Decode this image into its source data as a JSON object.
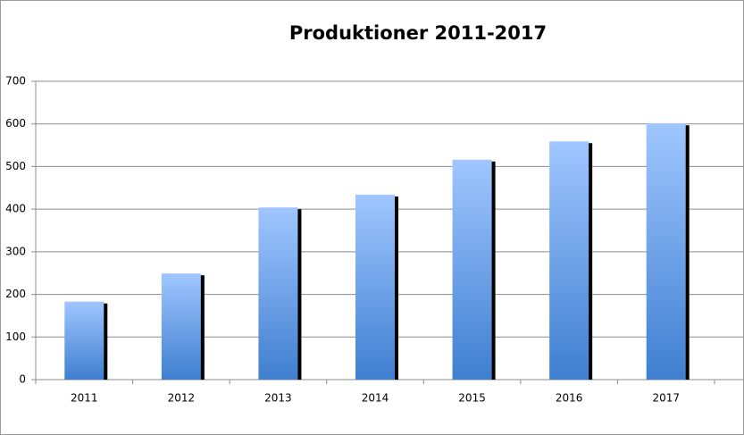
{
  "chart_data": {
    "type": "bar",
    "title": "Produktioner 2011-2017",
    "categories": [
      "2011",
      "2012",
      "2013",
      "2014",
      "2015",
      "2016",
      "2017"
    ],
    "values": [
      183,
      249,
      404,
      434,
      516,
      559,
      601
    ],
    "color": "#3f7fd0",
    "ylim": [
      0,
      700
    ],
    "yticks": [
      0,
      100,
      200,
      300,
      400,
      500,
      600,
      700
    ],
    "grid": true
  }
}
